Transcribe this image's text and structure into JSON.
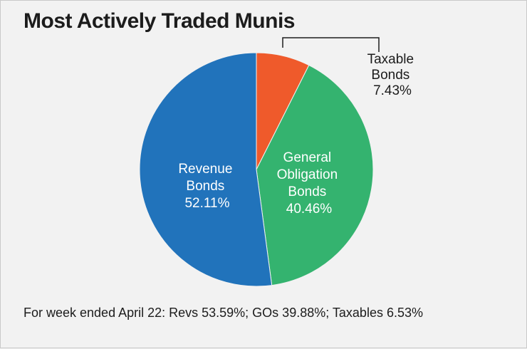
{
  "chart_data": {
    "type": "pie",
    "title": "Most Actively Traded Munis",
    "slices": [
      {
        "label_lines": [
          "Taxable",
          "Bonds"
        ],
        "value": 7.43,
        "value_text": "7.43%",
        "color": "#ef5a2b"
      },
      {
        "label_lines": [
          "General",
          "Obligation",
          "Bonds"
        ],
        "value": 40.46,
        "value_text": "40.46%",
        "color": "#34b36f"
      },
      {
        "label_lines": [
          "Revenue",
          "Bonds"
        ],
        "value": 52.11,
        "value_text": "52.11%",
        "color": "#2173bb"
      }
    ],
    "footnote": "For week ended April 22: Revs 53.59%; GOs 39.88%; Taxables 6.53%"
  }
}
